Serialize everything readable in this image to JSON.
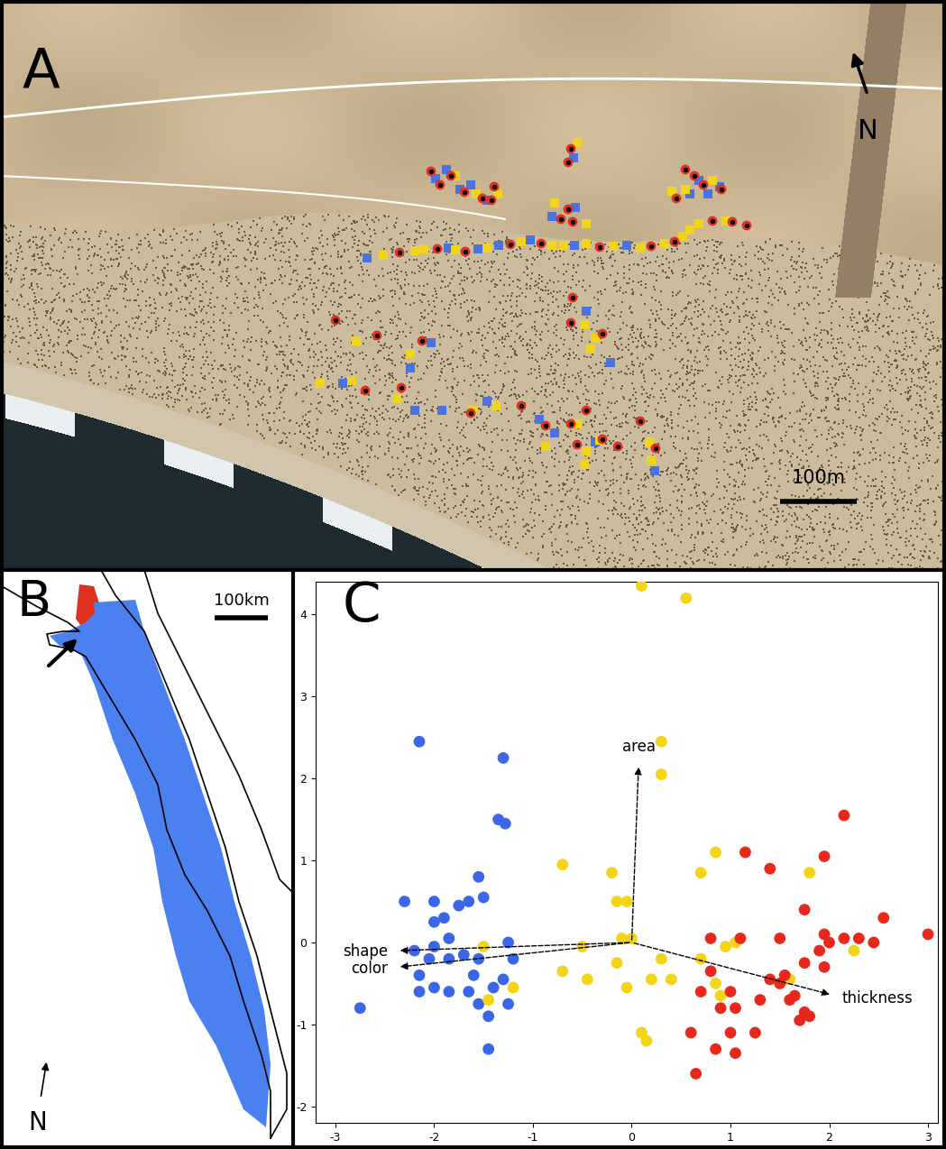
{
  "panels": {
    "A": {
      "label": "A",
      "north": "N",
      "scale_bar": {
        "value": 100,
        "label": "100m"
      },
      "groups": [
        {
          "color": "#4a72e0",
          "marker": "square",
          "points": [
            [
              407,
              286
            ],
            [
              497,
              275
            ],
            [
              530,
              276
            ],
            [
              553,
              272
            ],
            [
              588,
              266
            ],
            [
              637,
              272
            ],
            [
              695,
              272
            ],
            [
              483,
              198
            ],
            [
              495,
              188
            ],
            [
              510,
              210
            ],
            [
              522,
              205
            ],
            [
              540,
              222
            ],
            [
              636,
              175
            ],
            [
              612,
              240
            ],
            [
              638,
              230
            ],
            [
              775,
              200
            ],
            [
              765,
              215
            ],
            [
              798,
              207
            ],
            [
              785,
              215
            ],
            [
              478,
              380
            ],
            [
              455,
              408
            ],
            [
              380,
              425
            ],
            [
              650,
              345
            ],
            [
              677,
              402
            ],
            [
              460,
              455
            ],
            [
              490,
              455
            ],
            [
              540,
              445
            ],
            [
              598,
              465
            ],
            [
              615,
              480
            ],
            [
              660,
              490
            ],
            [
              726,
              522
            ]
          ]
        },
        {
          "color": "#f2d41c",
          "marker": "square",
          "points": [
            [
              425,
              283
            ],
            [
              460,
              278
            ],
            [
              470,
              276
            ],
            [
              505,
              277
            ],
            [
              540,
              275
            ],
            [
              578,
              268
            ],
            [
              612,
              272
            ],
            [
              625,
              272
            ],
            [
              650,
              270
            ],
            [
              680,
              273
            ],
            [
              710,
              275
            ],
            [
              737,
              270
            ],
            [
              757,
              262
            ],
            [
              765,
              255
            ],
            [
              775,
              248
            ],
            [
              805,
              245
            ],
            [
              505,
              195
            ],
            [
              528,
              215
            ],
            [
              552,
              215
            ],
            [
              640,
              158
            ],
            [
              615,
              225
            ],
            [
              650,
              248
            ],
            [
              760,
              210
            ],
            [
              790,
              200
            ],
            [
              745,
              212
            ],
            [
              395,
              378
            ],
            [
              455,
              392
            ],
            [
              355,
              425
            ],
            [
              390,
              422
            ],
            [
              440,
              442
            ],
            [
              648,
              360
            ],
            [
              660,
              375
            ],
            [
              655,
              387
            ],
            [
              524,
              455
            ],
            [
              550,
              450
            ],
            [
              640,
              470
            ],
            [
              605,
              495
            ],
            [
              650,
              500
            ],
            [
              665,
              488
            ],
            [
              720,
              490
            ],
            [
              722,
              510
            ],
            [
              648,
              515
            ]
          ]
        },
        {
          "color": "#e0301e",
          "marker": "circle",
          "points": [
            [
              443,
              280
            ],
            [
              485,
              276
            ],
            [
              516,
              279
            ],
            [
              566,
              271
            ],
            [
              600,
              270
            ],
            [
              665,
              274
            ],
            [
              722,
              273
            ],
            [
              748,
              268
            ],
            [
              790,
              245
            ],
            [
              812,
              246
            ],
            [
              828,
              250
            ],
            [
              478,
              190
            ],
            [
              488,
              205
            ],
            [
              500,
              195
            ],
            [
              515,
              213
            ],
            [
              535,
              220
            ],
            [
              548,
              207
            ],
            [
              545,
              222
            ],
            [
              633,
              165
            ],
            [
              630,
              180
            ],
            [
              622,
              243
            ],
            [
              630,
              232
            ],
            [
              635,
              246
            ],
            [
              760,
              188
            ],
            [
              770,
              195
            ],
            [
              780,
              205
            ],
            [
              800,
              210
            ],
            [
              750,
              220
            ],
            [
              372,
              355
            ],
            [
              418,
              372
            ],
            [
              468,
              378
            ],
            [
              405,
              433
            ],
            [
              445,
              430
            ],
            [
              635,
              330
            ],
            [
              633,
              358
            ],
            [
              668,
              370
            ],
            [
              522,
              458
            ],
            [
              578,
              450
            ],
            [
              605,
              472
            ],
            [
              650,
              455
            ],
            [
              640,
              493
            ],
            [
              633,
              470
            ],
            [
              685,
              495
            ],
            [
              710,
              467
            ],
            [
              727,
              497
            ],
            [
              668,
              487
            ]
          ]
        }
      ]
    },
    "B": {
      "label": "B",
      "north": "N",
      "scale_bar": {
        "value": 100,
        "label": "100km"
      },
      "colors": [
        "#e0301e",
        "#4a80f0"
      ]
    }
  },
  "chart_data": {
    "type": "scatter",
    "label": "C",
    "xlim": [
      -3.2,
      3.1
    ],
    "ylim": [
      -2.2,
      4.4
    ],
    "xticks": [
      -3,
      -2,
      -1,
      0,
      1,
      2,
      3
    ],
    "yticks": [
      -2,
      -1,
      0,
      1,
      2,
      3,
      4
    ],
    "marker": "circle",
    "series": [
      {
        "color": "#3a66e8",
        "points": [
          [
            -2.15,
            2.45
          ],
          [
            -1.3,
            2.25
          ],
          [
            -1.35,
            1.5
          ],
          [
            -1.28,
            1.45
          ],
          [
            -1.55,
            0.8
          ],
          [
            -1.5,
            0.55
          ],
          [
            -1.65,
            0.5
          ],
          [
            -2.3,
            0.5
          ],
          [
            -2.0,
            0.5
          ],
          [
            -2.0,
            0.25
          ],
          [
            -1.75,
            0.45
          ],
          [
            -1.85,
            0.05
          ],
          [
            -2.0,
            -0.05
          ],
          [
            -1.25,
            0.0
          ],
          [
            -1.2,
            -0.2
          ],
          [
            -2.05,
            -0.2
          ],
          [
            -1.85,
            -0.2
          ],
          [
            -1.55,
            -0.2
          ],
          [
            -1.7,
            -0.15
          ],
          [
            -2.15,
            -0.4
          ],
          [
            -2.0,
            -0.55
          ],
          [
            -2.15,
            -0.6
          ],
          [
            -1.85,
            -0.6
          ],
          [
            -1.65,
            -0.6
          ],
          [
            -1.4,
            -0.55
          ],
          [
            -1.3,
            -0.45
          ],
          [
            -1.25,
            -0.75
          ],
          [
            -1.45,
            -0.9
          ],
          [
            -1.55,
            -0.75
          ],
          [
            -2.75,
            -0.8
          ],
          [
            -1.45,
            -1.3
          ],
          [
            -1.6,
            -0.4
          ],
          [
            -2.2,
            -0.1
          ],
          [
            -1.9,
            0.3
          ]
        ]
      },
      {
        "color": "#f5d415",
        "points": [
          [
            0.1,
            4.35
          ],
          [
            0.55,
            4.2
          ],
          [
            0.3,
            2.45
          ],
          [
            0.3,
            2.05
          ],
          [
            -0.7,
            0.95
          ],
          [
            -0.2,
            0.85
          ],
          [
            -0.15,
            0.5
          ],
          [
            -0.05,
            0.5
          ],
          [
            0.7,
            0.85
          ],
          [
            0.85,
            1.1
          ],
          [
            1.8,
            0.85
          ],
          [
            0.7,
            -0.2
          ],
          [
            -1.5,
            -0.05
          ],
          [
            -1.2,
            -0.55
          ],
          [
            -1.45,
            -0.7
          ],
          [
            -0.5,
            -0.05
          ],
          [
            -0.7,
            -0.35
          ],
          [
            -0.45,
            -0.45
          ],
          [
            -0.15,
            -0.25
          ],
          [
            0.3,
            -0.2
          ],
          [
            0.2,
            -0.45
          ],
          [
            0.4,
            -0.45
          ],
          [
            -0.05,
            -0.55
          ],
          [
            0.85,
            -0.5
          ],
          [
            0.9,
            -0.65
          ],
          [
            0.1,
            -1.1
          ],
          [
            0.15,
            -1.2
          ],
          [
            1.55,
            -0.45
          ],
          [
            1.05,
            0.0
          ],
          [
            0.95,
            -0.05
          ],
          [
            2.25,
            -0.1
          ],
          [
            1.6,
            -0.45
          ],
          [
            -0.1,
            0.05
          ],
          [
            0.0,
            0.05
          ]
        ]
      },
      {
        "color": "#e8281c",
        "points": [
          [
            2.15,
            1.55
          ],
          [
            1.15,
            1.1
          ],
          [
            1.95,
            1.05
          ],
          [
            1.4,
            0.9
          ],
          [
            1.75,
            0.4
          ],
          [
            1.1,
            0.05
          ],
          [
            1.5,
            0.05
          ],
          [
            0.8,
            0.05
          ],
          [
            1.95,
            0.1
          ],
          [
            2.3,
            0.05
          ],
          [
            2.45,
            0.0
          ],
          [
            2.55,
            0.3
          ],
          [
            3.0,
            0.1
          ],
          [
            1.9,
            -0.1
          ],
          [
            1.75,
            -0.25
          ],
          [
            1.55,
            -0.4
          ],
          [
            1.4,
            -0.45
          ],
          [
            1.5,
            -0.5
          ],
          [
            0.8,
            -0.35
          ],
          [
            0.7,
            -0.6
          ],
          [
            1.0,
            -0.6
          ],
          [
            1.05,
            -0.8
          ],
          [
            0.9,
            -0.8
          ],
          [
            1.3,
            -0.7
          ],
          [
            1.65,
            -0.65
          ],
          [
            1.75,
            -0.85
          ],
          [
            1.7,
            -0.95
          ],
          [
            1.8,
            -0.9
          ],
          [
            1.95,
            -0.3
          ],
          [
            0.6,
            -1.1
          ],
          [
            1.0,
            -1.1
          ],
          [
            1.25,
            -1.1
          ],
          [
            1.05,
            -1.35
          ],
          [
            0.65,
            -1.6
          ],
          [
            0.85,
            -1.3
          ],
          [
            1.6,
            -0.7
          ],
          [
            2.0,
            0.0
          ],
          [
            2.15,
            0.05
          ]
        ]
      }
    ],
    "loadings": [
      {
        "name": "area",
        "x": 0.07,
        "y": 2.17
      },
      {
        "name": "shape",
        "x": -2.37,
        "y": -0.1
      },
      {
        "name": "color",
        "x": -2.37,
        "y": -0.3
      },
      {
        "name": "thickness",
        "x": 2.03,
        "y": -0.64
      }
    ]
  }
}
